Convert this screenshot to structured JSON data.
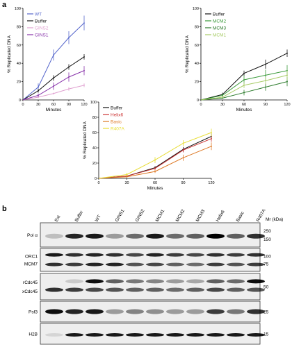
{
  "figure": {
    "panel_a_label": "a",
    "panel_b_label": "b"
  },
  "chart_data": [
    {
      "type": "line",
      "xlabel": "Minutes",
      "ylabel": "% Replicated DNA",
      "x": [
        0,
        30,
        60,
        90,
        120
      ],
      "xticks": [
        "0",
        "30",
        "60",
        "90",
        "120"
      ],
      "yticks": [
        "0",
        "20",
        "40",
        "60",
        "80",
        "100"
      ],
      "xlim": [
        0,
        120
      ],
      "ylim": [
        0,
        100
      ],
      "legend_position": "top-left",
      "series": [
        {
          "name": "WT",
          "color": "#5566cc",
          "values": [
            0,
            14,
            49,
            68,
            84
          ],
          "err": [
            0,
            4,
            6,
            7,
            8
          ]
        },
        {
          "name": "Buffer",
          "color": "#111111",
          "values": [
            0,
            10,
            24,
            36,
            47
          ],
          "err": [
            0,
            2,
            3,
            3,
            3
          ]
        },
        {
          "name": "GINS2",
          "color": "#e0a0d0",
          "values": [
            0,
            3,
            7,
            12,
            16
          ],
          "err": [
            0,
            1,
            1,
            2,
            2
          ]
        },
        {
          "name": "GINS1",
          "color": "#8833aa",
          "values": [
            0,
            5,
            15,
            25,
            32
          ],
          "err": [
            0,
            2,
            4,
            5,
            5
          ]
        }
      ]
    },
    {
      "type": "line",
      "xlabel": "Minutes",
      "ylabel": "% Replicated DNA",
      "x": [
        0,
        30,
        60,
        90,
        120
      ],
      "xticks": [
        "0",
        "30",
        "60",
        "90",
        "120"
      ],
      "yticks": [
        "0",
        "20",
        "40",
        "60",
        "80",
        "100"
      ],
      "xlim": [
        0,
        120
      ],
      "ylim": [
        0,
        100
      ],
      "legend_position": "top-left",
      "series": [
        {
          "name": "Buffer",
          "color": "#111111",
          "values": [
            0,
            6,
            29,
            39,
            51
          ],
          "err": [
            0,
            2,
            3,
            5,
            4
          ]
        },
        {
          "name": "MCM2",
          "color": "#3a9a3a",
          "values": [
            0,
            5,
            22,
            27,
            32
          ],
          "err": [
            0,
            2,
            5,
            6,
            6
          ]
        },
        {
          "name": "MCM3",
          "color": "#2a7a2a",
          "values": [
            0,
            2,
            8,
            14,
            20
          ],
          "err": [
            0,
            1,
            3,
            4,
            5
          ]
        },
        {
          "name": "MCM1",
          "color": "#a8cc66",
          "values": [
            0,
            3,
            16,
            21,
            27
          ],
          "err": [
            0,
            1,
            3,
            4,
            5
          ]
        }
      ]
    },
    {
      "type": "line",
      "xlabel": "Minutes",
      "ylabel": "% Replicated DNA",
      "x": [
        0,
        30,
        60,
        90,
        120
      ],
      "xticks": [
        "0",
        "30",
        "60",
        "90",
        "120"
      ],
      "yticks": [
        "0",
        "20",
        "40",
        "60",
        "80",
        "100"
      ],
      "xlim": [
        0,
        120
      ],
      "ylim": [
        0,
        100
      ],
      "legend_position": "top-left",
      "series": [
        {
          "name": "Buffer",
          "color": "#111111",
          "values": [
            0,
            3,
            14,
            38,
            55
          ],
          "err": [
            0,
            1,
            2,
            3,
            4
          ]
        },
        {
          "name": "Helix6",
          "color": "#cc3333",
          "values": [
            0,
            3,
            13,
            37,
            52
          ],
          "err": [
            0,
            1,
            2,
            3,
            4
          ]
        },
        {
          "name": "Basic",
          "color": "#dd7722",
          "values": [
            0,
            2,
            9,
            27,
            42
          ],
          "err": [
            0,
            1,
            2,
            4,
            5
          ]
        },
        {
          "name": "R407A",
          "color": "#e8dd33",
          "values": [
            0,
            5,
            24,
            46,
            60
          ],
          "err": [
            0,
            2,
            4,
            4,
            5
          ]
        }
      ]
    }
  ],
  "blot": {
    "lanes": [
      "Ext",
      "Buffer",
      "WT",
      "GINS1",
      "GINS2",
      "MCM1",
      "MCM2",
      "MCM3",
      "Helix6",
      "Basic",
      "R407A"
    ],
    "mr_label": "Mr (kDa)",
    "rows": [
      {
        "labels": [
          "Pol α"
        ],
        "markers": [
          "250",
          "150"
        ]
      },
      {
        "labels": [
          "ORC1",
          "MCM7"
        ],
        "markers": [
          "100",
          "75"
        ]
      },
      {
        "labels": [
          "rCdc45",
          "xCdc45"
        ],
        "markers": [
          "50"
        ]
      },
      {
        "labels": [
          "Psf3"
        ],
        "markers": [
          "25"
        ]
      },
      {
        "labels": [
          "H2B"
        ],
        "markers": [
          "15"
        ]
      }
    ]
  }
}
